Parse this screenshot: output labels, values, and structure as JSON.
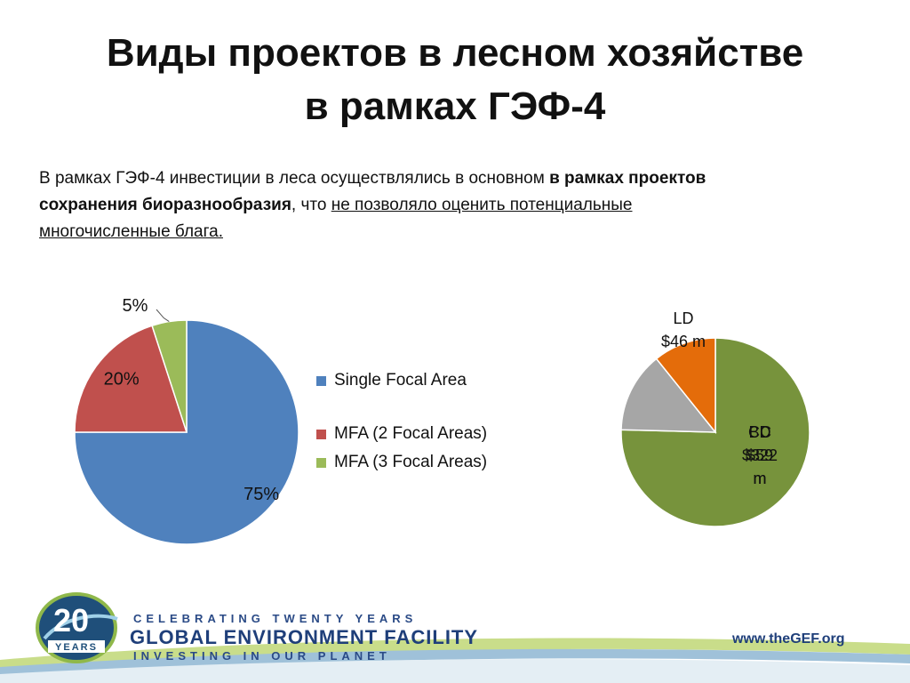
{
  "slide": {
    "title_line1": "Виды проектов в лесном хозяйстве",
    "title_line2": "в рамках ГЭФ-4",
    "intro": {
      "part1": "В рамках ГЭФ-4 инвестиции в леса осуществлялись в основном ",
      "bold": "в рамках проектов сохранения биоразнообразия",
      "part2": ", что ",
      "underlined": "не позволяло оценить потенциальные многочисленные блага."
    }
  },
  "chart_data": [
    {
      "type": "pie",
      "slices": [
        {
          "label": "Single Focal Area",
          "value": 75,
          "value_label": "75%",
          "color": "#4f81bd"
        },
        {
          "label": "MFA (2 Focal Areas)",
          "value": 20,
          "value_label": "20%",
          "color": "#c0504d"
        },
        {
          "label": "MFA (3 Focal Areas)",
          "value": 5,
          "value_label": "5%",
          "color": "#9bbb59"
        }
      ],
      "legend": [
        "Single Focal Area",
        "MFA (2 Focal Areas)",
        "MFA (3 Focal Areas)"
      ],
      "legend_position": "right"
    },
    {
      "type": "pie",
      "slices": [
        {
          "label": "BD",
          "value": 322,
          "value_label": "$322 m",
          "color": "#77933c"
        },
        {
          "label": "CC",
          "value": 59,
          "value_label": "$59 m",
          "color": "#a6a6a6"
        },
        {
          "label": "LD",
          "value": 46,
          "value_label": "$46 m",
          "color": "#e46c0a"
        }
      ]
    }
  ],
  "footer": {
    "celebrating": "CELEBRATING TWENTY YEARS",
    "name": "GLOBAL ENVIRONMENT FACILITY",
    "tagline": "INVESTING IN OUR PLANET",
    "url": "www.theGEF.org",
    "logo_number": "20",
    "logo_word": "YEARS"
  }
}
